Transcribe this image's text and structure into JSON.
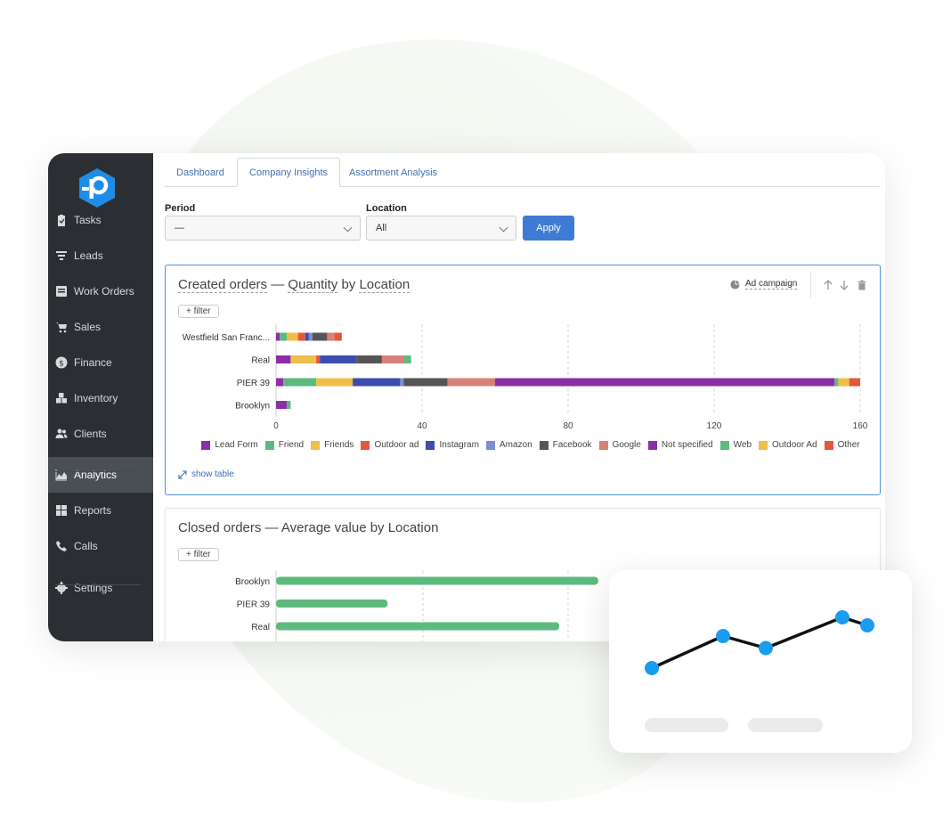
{
  "sidebar": {
    "items": [
      {
        "label": "Tasks",
        "icon": "clipboard-icon"
      },
      {
        "label": "Leads",
        "icon": "funnel-icon"
      },
      {
        "label": "Work Orders",
        "icon": "work-order-icon"
      },
      {
        "label": "Sales",
        "icon": "cart-icon"
      },
      {
        "label": "Finance",
        "icon": "dollar-icon"
      },
      {
        "label": "Inventory",
        "icon": "boxes-icon"
      },
      {
        "label": "Clients",
        "icon": "users-icon"
      },
      {
        "label": "Analytics",
        "icon": "area-chart-icon",
        "active": true
      },
      {
        "label": "Reports",
        "icon": "table-icon"
      },
      {
        "label": "Calls",
        "icon": "phone-icon"
      },
      {
        "label": "Settings",
        "icon": "gear-icon"
      }
    ]
  },
  "tabs": [
    {
      "label": "Dashboard"
    },
    {
      "label": "Company Insights",
      "active": true
    },
    {
      "label": "Assortment Analysis"
    }
  ],
  "filters": {
    "period_label": "Period",
    "period_value": "—",
    "location_label": "Location",
    "location_value": "All",
    "apply_label": "Apply"
  },
  "card1": {
    "title_metric": "Created orders",
    "title_sep": " — ",
    "title_measure": "Quantity",
    "title_by": " by ",
    "title_dim": "Location",
    "filter_label": "+ filter",
    "campaign_label": "Ad campaign",
    "show_table_label": "show table"
  },
  "card2": {
    "title_metric": "Closed orders",
    "title_sep": " — ",
    "title_measure": "Average value",
    "title_by": " by ",
    "title_dim": "Location",
    "filter_label": "+ filter"
  },
  "chart_data": [
    {
      "type": "bar",
      "orientation": "horizontal",
      "stacked": true,
      "categories": [
        "Westfield San Franc...",
        "Real",
        "PIER 39",
        "Brooklyn"
      ],
      "xlim": [
        0,
        160
      ],
      "xticks": [
        0,
        40,
        80,
        120,
        160
      ],
      "grid": true,
      "legend_position": "bottom",
      "series": [
        {
          "name": "Lead Form",
          "color": "#8a2fa8",
          "values": [
            1,
            4,
            2,
            3
          ]
        },
        {
          "name": "Friend",
          "color": "#5dba7d",
          "values": [
            2,
            0,
            9,
            1
          ]
        },
        {
          "name": "Friends",
          "color": "#f0be4a",
          "values": [
            3,
            7,
            10,
            0
          ]
        },
        {
          "name": "Outdoor ad",
          "color": "#e25a3a",
          "values": [
            2,
            1,
            0,
            0
          ]
        },
        {
          "name": "Instagram",
          "color": "#3c4db0",
          "values": [
            1,
            10,
            13,
            0
          ]
        },
        {
          "name": "Amazon",
          "color": "#7b8fd0",
          "values": [
            1,
            0,
            1,
            0
          ]
        },
        {
          "name": "Facebook",
          "color": "#555555",
          "values": [
            4,
            7,
            12,
            0
          ]
        },
        {
          "name": "Google",
          "color": "#d9807a",
          "values": [
            2,
            6,
            13,
            0
          ]
        },
        {
          "name": "Not specified",
          "color": "#8a2fa8",
          "values": [
            0,
            0,
            93,
            0
          ]
        },
        {
          "name": "Web",
          "color": "#5dba7d",
          "values": [
            0,
            2,
            1,
            0
          ]
        },
        {
          "name": "Outdoor Ad",
          "color": "#f0be4a",
          "values": [
            0,
            0,
            3,
            0
          ]
        },
        {
          "name": "Other",
          "color": "#e25a3a",
          "values": [
            2,
            0,
            3,
            0
          ]
        }
      ]
    },
    {
      "type": "bar",
      "orientation": "horizontal",
      "categories": [
        "Brooklyn",
        "PIER 39",
        "Real"
      ],
      "series": [
        {
          "color": "#5dba7d",
          "values": [
            182,
            63,
            160
          ]
        }
      ],
      "grid": true,
      "xlim": [
        0,
        330
      ]
    },
    {
      "type": "line",
      "x": [
        1,
        2,
        3,
        4,
        5
      ],
      "values": [
        2,
        4.4,
        3.5,
        5.8,
        5.2
      ],
      "color": "#1a9cf0",
      "ylim": [
        0,
        8
      ]
    }
  ]
}
